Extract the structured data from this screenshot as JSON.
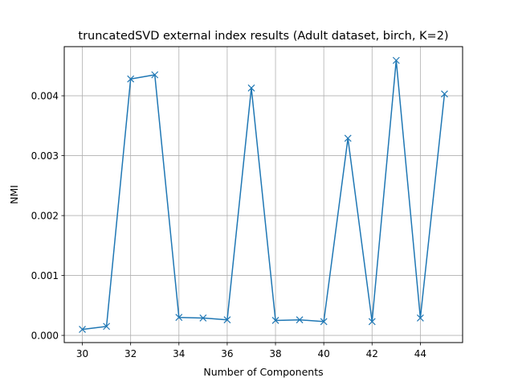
{
  "chart_data": {
    "type": "line",
    "title": "truncatedSVD external index results (Adult dataset, birch, K=2)",
    "xlabel": "Number of Components",
    "ylabel": "NMI",
    "xlim": [
      29.25,
      45.75
    ],
    "ylim": [
      -0.00012,
      0.00482
    ],
    "x_ticks": [
      30,
      32,
      34,
      36,
      38,
      40,
      42,
      44
    ],
    "x_tick_labels": [
      "30",
      "32",
      "34",
      "36",
      "38",
      "40",
      "42",
      "44"
    ],
    "y_ticks": [
      0,
      0.001,
      0.002,
      0.003,
      0.004
    ],
    "y_tick_labels": [
      "0.000",
      "0.001",
      "0.002",
      "0.003",
      "0.004"
    ],
    "grid": true,
    "marker": "x",
    "series": [
      {
        "color": "#1f77b4",
        "x": [
          30,
          31,
          32,
          33,
          34,
          35,
          36,
          37,
          38,
          39,
          40,
          41,
          42,
          43,
          44,
          45
        ],
        "values": [
          0.0001,
          0.00015,
          0.00428,
          0.00435,
          0.0003,
          0.00029,
          0.00026,
          0.00413,
          0.00025,
          0.00026,
          0.00023,
          0.00329,
          0.00023,
          0.00459,
          0.00029,
          0.00403
        ]
      }
    ]
  }
}
